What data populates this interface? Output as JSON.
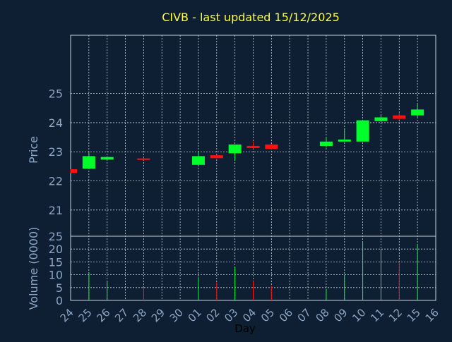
{
  "colors": {
    "background": "#0f1f33",
    "grid": "#c8d2dc",
    "axis_text": "#8aa6c4",
    "title": "#ffff33",
    "up": "#00ff2a",
    "down": "#ff1010",
    "frame": "#c8d2dc"
  },
  "chart_data": {
    "type": "candlestick",
    "title": "CIVB - last updated 15/12/2025",
    "xlabel": "Day",
    "ylabel_price": "Price",
    "ylabel_volume": "Volume (0000)",
    "x_ticks": [
      "24",
      "25",
      "26",
      "27",
      "28",
      "29",
      "30",
      "01",
      "02",
      "03",
      "04",
      "05",
      "06",
      "07",
      "08",
      "09",
      "10",
      "11",
      "12",
      "15",
      "16"
    ],
    "price_ylim": [
      20.1,
      27.0
    ],
    "price_ticks": [
      21,
      22,
      23,
      24,
      25
    ],
    "volume_ylim": [
      0,
      25
    ],
    "volume_ticks": [
      0,
      5,
      10,
      15,
      20,
      25
    ],
    "candles": [
      {
        "day": "24",
        "open": 22.4,
        "high": 22.4,
        "low": 22.27,
        "close": 22.27,
        "volume": 0
      },
      {
        "day": "25",
        "open": 22.42,
        "high": 23.0,
        "low": 22.4,
        "close": 22.85,
        "volume": 11
      },
      {
        "day": "26",
        "open": 22.73,
        "high": 22.85,
        "low": 22.73,
        "close": 22.82,
        "volume": 7.5
      },
      {
        "day": "28",
        "open": 22.77,
        "high": 22.8,
        "low": 22.72,
        "close": 22.73,
        "volume": 5
      },
      {
        "day": "01",
        "open": 22.55,
        "high": 23.0,
        "low": 22.55,
        "close": 22.85,
        "volume": 9
      },
      {
        "day": "02",
        "open": 22.88,
        "high": 22.9,
        "low": 22.77,
        "close": 22.78,
        "volume": 7
      },
      {
        "day": "03",
        "open": 22.95,
        "high": 23.25,
        "low": 22.72,
        "close": 23.25,
        "volume": 13
      },
      {
        "day": "04",
        "open": 23.2,
        "high": 23.35,
        "low": 23.1,
        "close": 23.13,
        "volume": 7.5
      },
      {
        "day": "05",
        "open": 23.25,
        "high": 23.27,
        "low": 23.08,
        "close": 23.1,
        "volume": 5.5
      },
      {
        "day": "08",
        "open": 23.2,
        "high": 23.5,
        "low": 23.15,
        "close": 23.35,
        "volume": 4.5
      },
      {
        "day": "09",
        "open": 23.35,
        "high": 23.8,
        "low": 23.35,
        "close": 23.42,
        "volume": 10
      },
      {
        "day": "10",
        "open": 23.35,
        "high": 24.08,
        "low": 23.35,
        "close": 24.08,
        "volume": 23
      },
      {
        "day": "11",
        "open": 24.05,
        "high": 24.25,
        "low": 24.02,
        "close": 24.18,
        "volume": 20
      },
      {
        "day": "12",
        "open": 24.25,
        "high": 24.35,
        "low": 24.08,
        "close": 24.13,
        "volume": 15
      },
      {
        "day": "15",
        "open": 24.25,
        "high": 24.65,
        "low": 24.18,
        "close": 24.45,
        "volume": 22
      }
    ]
  }
}
